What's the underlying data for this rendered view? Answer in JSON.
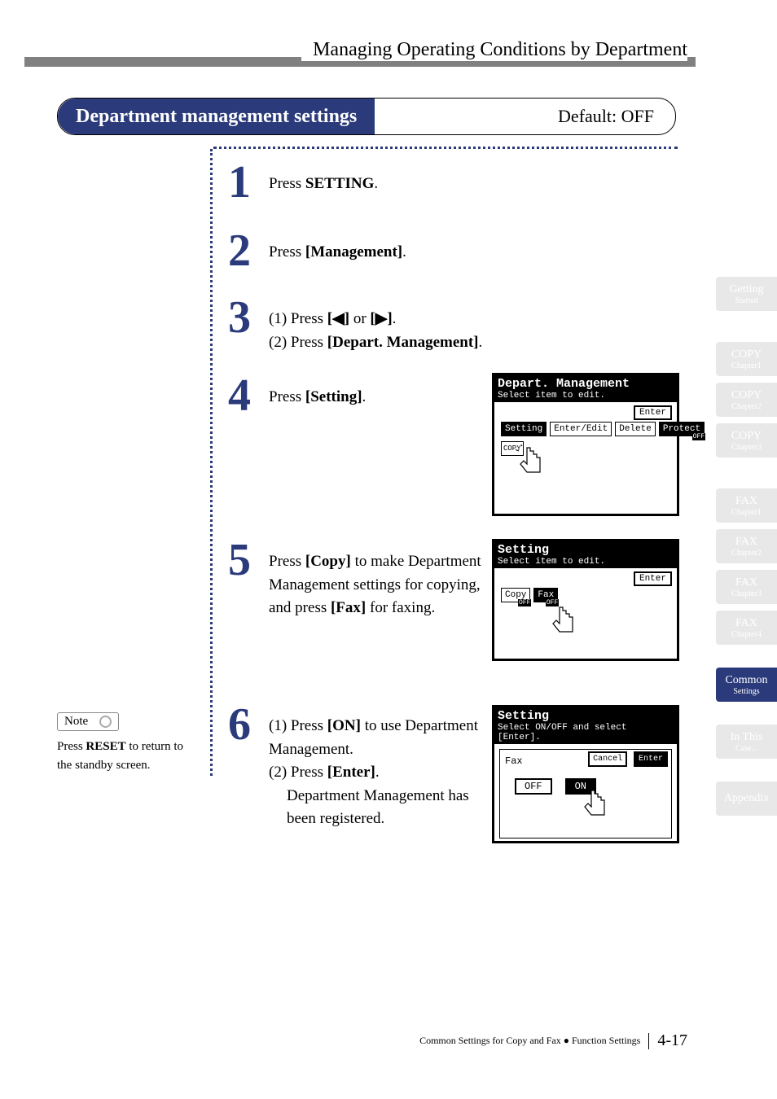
{
  "header": {
    "title": "Managing Operating Conditions by Department"
  },
  "title_box": {
    "main": "Department management settings",
    "default": "Default: OFF"
  },
  "steps": {
    "s1": {
      "num": "1",
      "pre": "Press ",
      "key": "SETTING",
      "post": "."
    },
    "s2": {
      "num": "2",
      "pre": "Press ",
      "bold": "[Management]",
      "post": "."
    },
    "s3": {
      "num": "3",
      "l1a": "(1) Press ",
      "l1b": "[◀]",
      "l1c": " or ",
      "l1d": "[▶]",
      "l1e": ".",
      "l2a": "(2) Press ",
      "l2b": "[Depart. Management]",
      "l2c": "."
    },
    "s4": {
      "num": "4",
      "pre": "Press ",
      "bold": "[Setting]",
      "post": "."
    },
    "s5": {
      "num": "5",
      "a": "Press ",
      "b": "[Copy]",
      "c": " to make Department Management settings for copying, and press ",
      "d": "[Fax]",
      "e": " for faxing."
    },
    "s6": {
      "num": "6",
      "l1a": "(1) Press ",
      "l1b": "[ON]",
      "l1c": " to use Department Management.",
      "l2a": "(2) Press ",
      "l2b": "[Enter]",
      "l2c": ".",
      "l3": "Department Management has been registered."
    }
  },
  "note": {
    "label": "Note",
    "text_a": "Press ",
    "text_key": "RESET",
    "text_b": " to return to the standby screen."
  },
  "lcd4": {
    "title": "Depart. Management",
    "subtitle": "Select item to edit.",
    "enter": "Enter",
    "buttons": {
      "setting": "Setting",
      "enteredit": "Enter/Edit",
      "delete": "Delete",
      "protect": "Protect",
      "protect_off": "OFF",
      "copy": "COPY"
    }
  },
  "lcd5": {
    "title": "Setting",
    "subtitle": "Select item to edit.",
    "enter": "Enter",
    "copy": "Copy",
    "copy_off": "OFF",
    "fax": "Fax",
    "fax_off": "OFF"
  },
  "lcd6": {
    "title": "Setting",
    "subtitle": "Select ON/OFF and select [Enter].",
    "fax": "Fax",
    "cancel": "Cancel",
    "enter": "Enter",
    "off": "OFF",
    "on": "ON"
  },
  "sidebar": [
    {
      "l1": "Getting",
      "l2": "Started",
      "on": false
    },
    {
      "l1": "COPY",
      "l2": "Chapter1",
      "on": false
    },
    {
      "l1": "COPY",
      "l2": "Chapter2",
      "on": false
    },
    {
      "l1": "COPY",
      "l2": "Chapter3",
      "on": false
    },
    {
      "l1": "FAX",
      "l2": "Chapter1",
      "on": false
    },
    {
      "l1": "FAX",
      "l2": "Chapter2",
      "on": false
    },
    {
      "l1": "FAX",
      "l2": "Chapter3",
      "on": false
    },
    {
      "l1": "FAX",
      "l2": "Chapter4",
      "on": false
    },
    {
      "l1": "Common",
      "l2": "Settings",
      "on": true
    },
    {
      "l1": "In This",
      "l2": "Case...",
      "on": false
    },
    {
      "l1": "Appendix",
      "l2": "",
      "on": false
    }
  ],
  "footer": {
    "text": "Common Settings for Copy and Fax ● Function Settings",
    "page": "4-17"
  },
  "colors": {
    "accent": "#2a3a7a",
    "header_bar": "#808080",
    "tab_inactive": "#e8e8e8"
  }
}
